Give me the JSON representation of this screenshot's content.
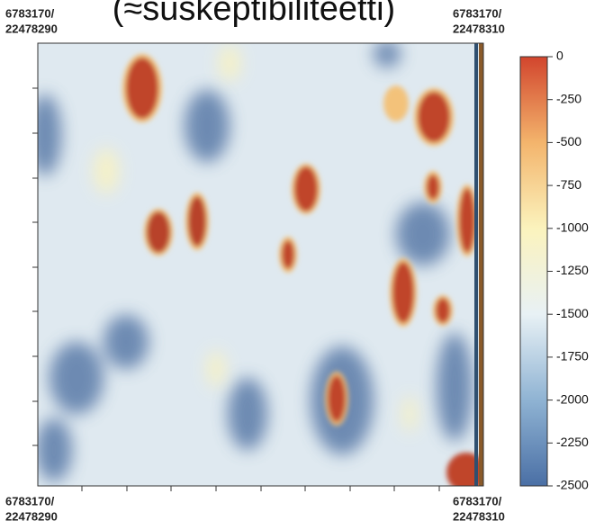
{
  "title": "(≈suskeptibiliteetti)",
  "corners": {
    "top_left": [
      "6783170/",
      "22478290"
    ],
    "top_right": [
      "6783170/",
      "22478310"
    ],
    "bottom_left": [
      "6783170/",
      "22478290"
    ],
    "bottom_right": [
      "6783170/",
      "22478310"
    ]
  },
  "colorbar": {
    "lim": [
      -2500,
      0
    ],
    "ticks": [
      0,
      -250,
      -500,
      -750,
      -1000,
      -1250,
      -1500,
      -1750,
      -2000,
      -2250,
      -2500
    ],
    "colors": [
      "#4a6fa5",
      "#8fb3d3",
      "#e8f1f5",
      "#fbf3bd",
      "#f3b46c",
      "#d2452d"
    ]
  }
}
